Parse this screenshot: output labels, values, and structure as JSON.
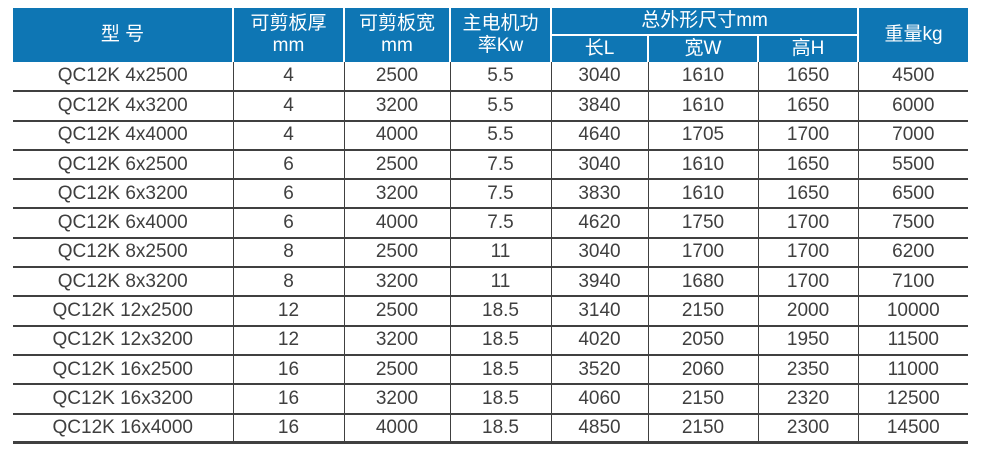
{
  "page": {
    "background": "#ffffff"
  },
  "colors": {
    "header_bg": "#0e76b4",
    "header_text": "#ffffff",
    "body_text": "#3f3f3f",
    "grid_line": "#404040",
    "header_separator": "#ffffff"
  },
  "table": {
    "header": {
      "model": "型 号",
      "thickness_line1": "可剪板厚",
      "thickness_line2": "mm",
      "width_line1": "可剪板宽",
      "width_line2": "mm",
      "power_line1": "主电机功",
      "power_line2": "率Kw",
      "dimensions_group": "总外形尺寸mm",
      "dim_length": "长L",
      "dim_width": "宽W",
      "dim_height": "高H",
      "weight": "重量kg"
    },
    "rows": [
      [
        "QC12K 4x2500",
        "4",
        "2500",
        "5.5",
        "3040",
        "1610",
        "1650",
        "4500"
      ],
      [
        "QC12K 4x3200",
        "4",
        "3200",
        "5.5",
        "3840",
        "1610",
        "1650",
        "6000"
      ],
      [
        "QC12K 4x4000",
        "4",
        "4000",
        "5.5",
        "4640",
        "1705",
        "1700",
        "7000"
      ],
      [
        "QC12K 6x2500",
        "6",
        "2500",
        "7.5",
        "3040",
        "1610",
        "1650",
        "5500"
      ],
      [
        "QC12K 6x3200",
        "6",
        "3200",
        "7.5",
        "3830",
        "1610",
        "1650",
        "6500"
      ],
      [
        "QC12K 6x4000",
        "6",
        "4000",
        "7.5",
        "4620",
        "1750",
        "1700",
        "7500"
      ],
      [
        "QC12K 8x2500",
        "8",
        "2500",
        "11",
        "3040",
        "1700",
        "1700",
        "6200"
      ],
      [
        "QC12K 8x3200",
        "8",
        "3200",
        "11",
        "3940",
        "1680",
        "1700",
        "7100"
      ],
      [
        "QC12K 12x2500",
        "12",
        "2500",
        "18.5",
        "3140",
        "2150",
        "2000",
        "10000"
      ],
      [
        "QC12K 12x3200",
        "12",
        "3200",
        "18.5",
        "4020",
        "2050",
        "1950",
        "11500"
      ],
      [
        "QC12K 16x2500",
        "16",
        "2500",
        "18.5",
        "3520",
        "2060",
        "2350",
        "11000"
      ],
      [
        "QC12K 16x3200",
        "16",
        "3200",
        "18.5",
        "4060",
        "2150",
        "2320",
        "12500"
      ],
      [
        "QC12K 16x4000",
        "16",
        "4000",
        "18.5",
        "4850",
        "2150",
        "2300",
        "14500"
      ]
    ]
  }
}
